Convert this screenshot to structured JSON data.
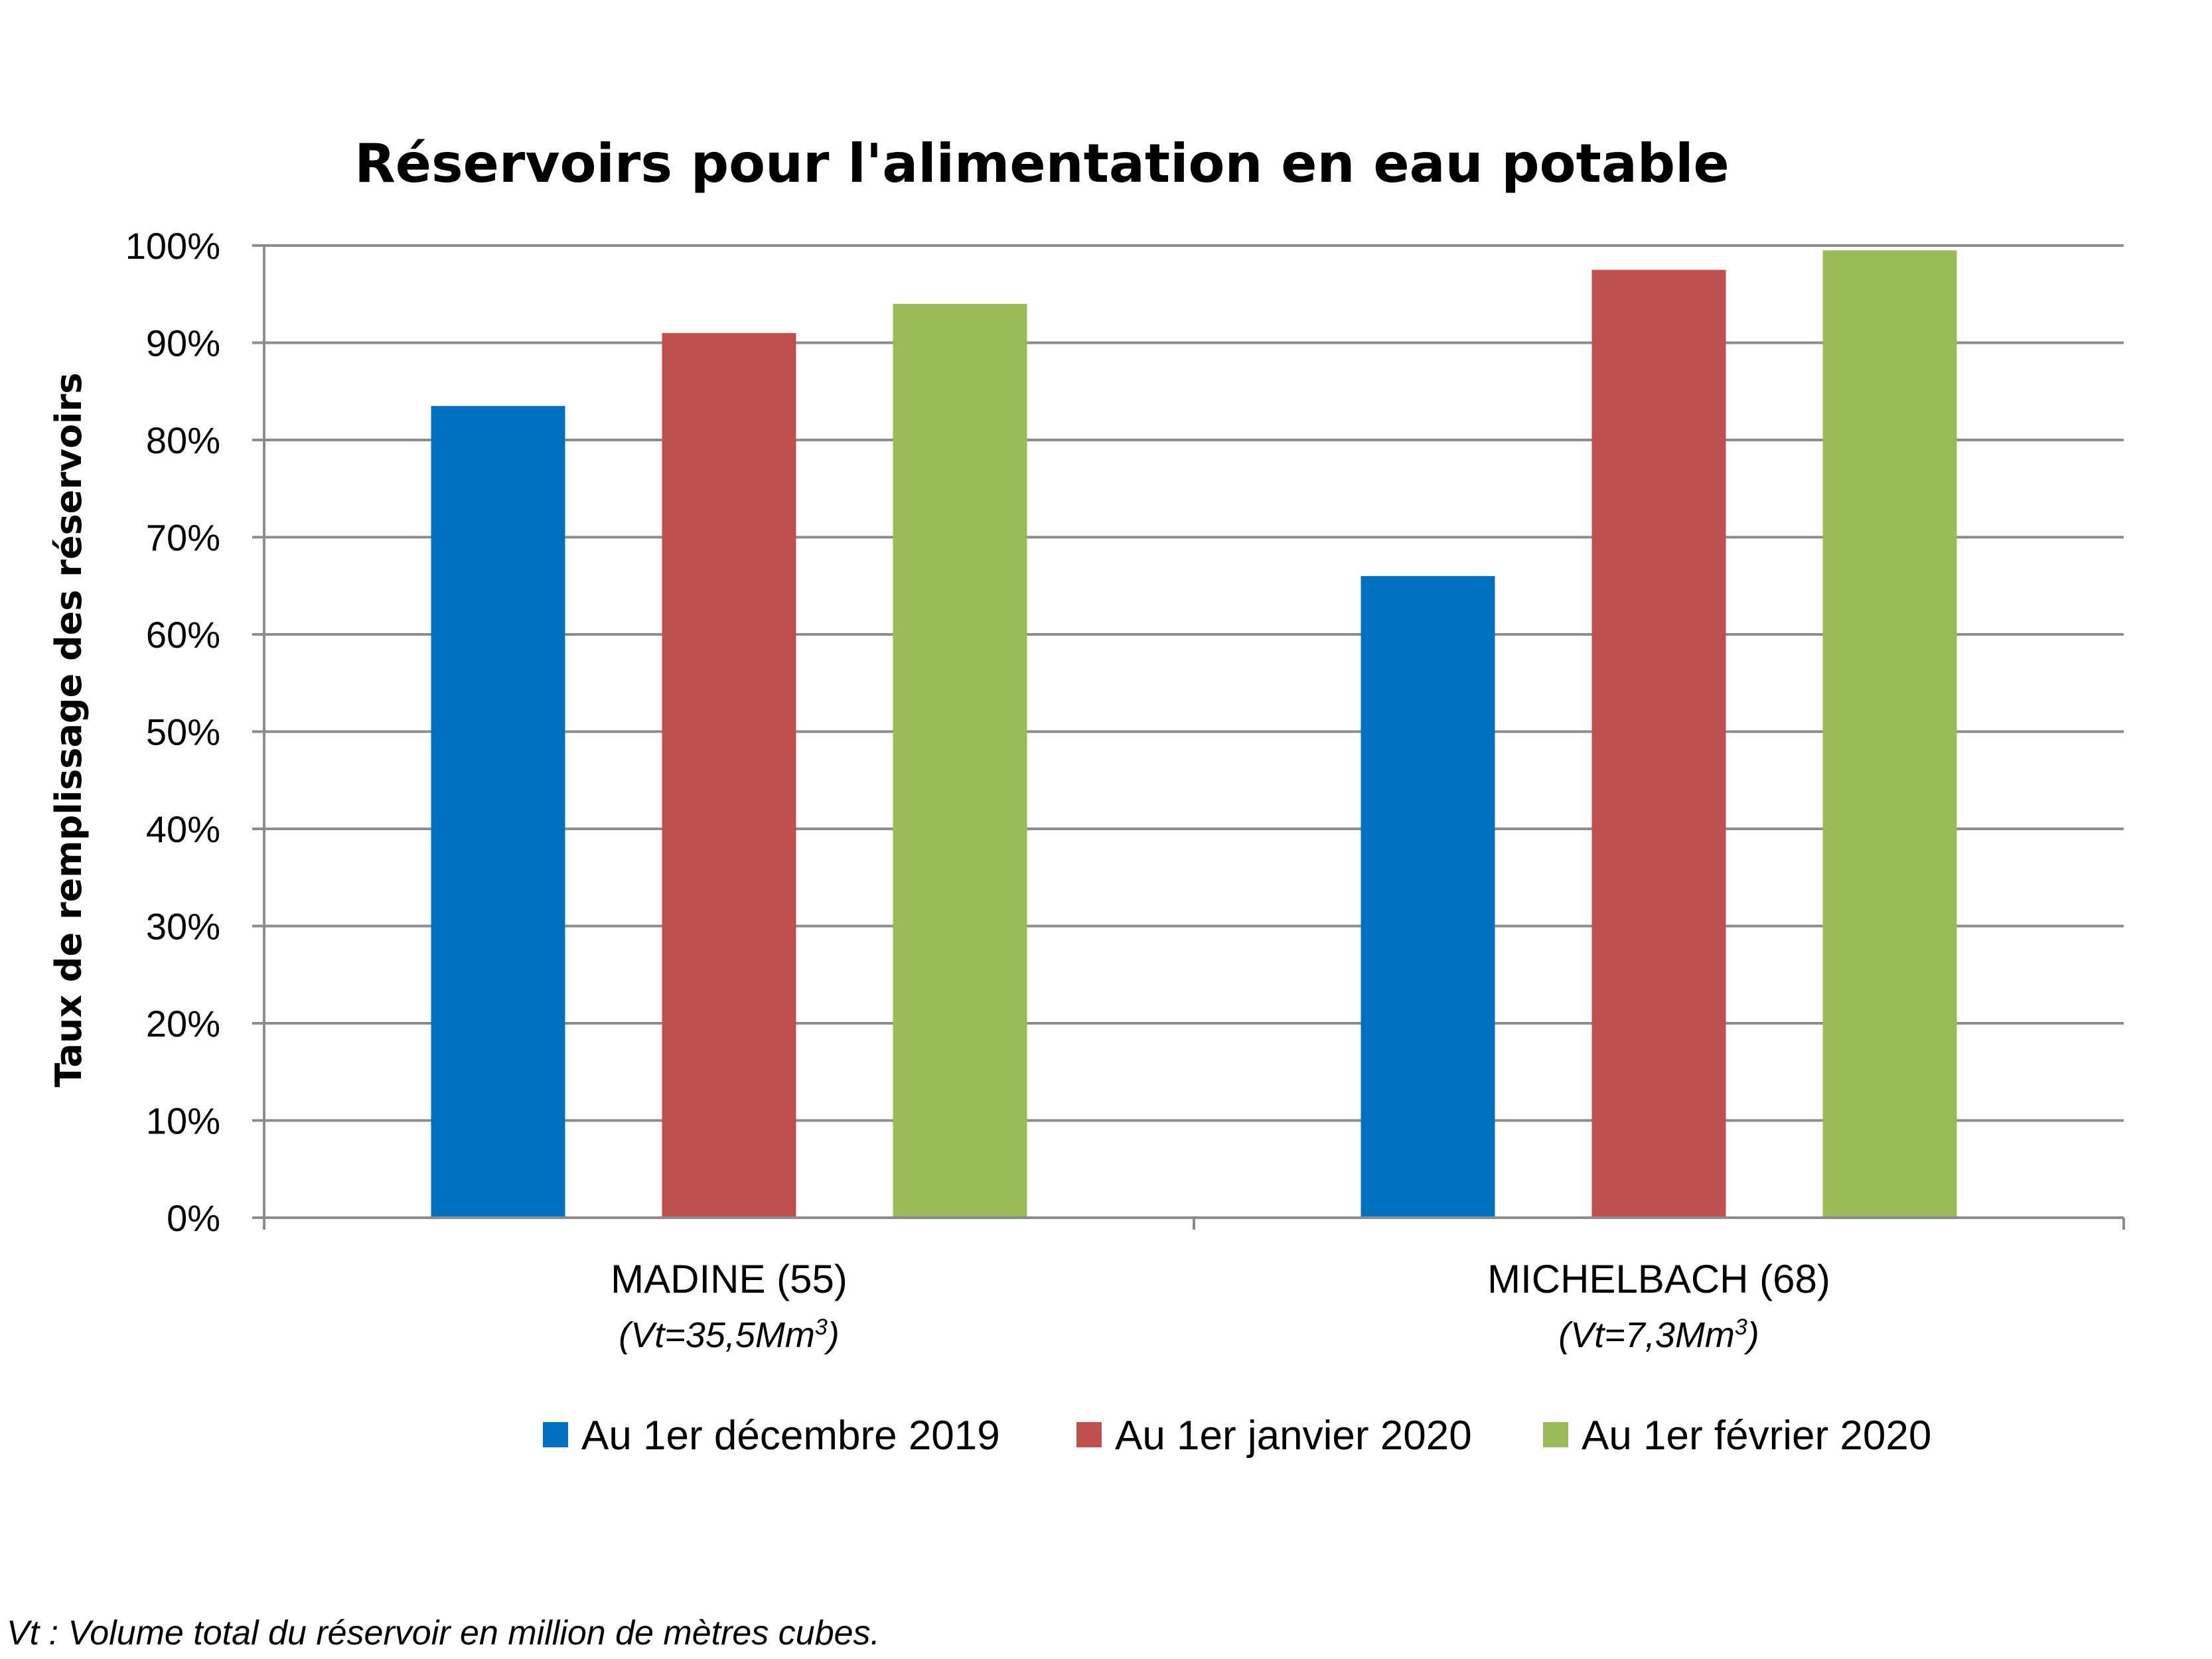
{
  "chart_data": {
    "type": "bar",
    "title": "Réservoirs pour l'alimentation en eau potable",
    "ylabel": "Taux de remplissage des réservoirs",
    "xlabel": "",
    "ylim": [
      0,
      100
    ],
    "yticks": [
      "0%",
      "10%",
      "20%",
      "30%",
      "40%",
      "50%",
      "60%",
      "70%",
      "80%",
      "90%",
      "100%"
    ],
    "categories": [
      "MADINE (55)",
      "MICHELBACH (68)"
    ],
    "category_sublabels": [
      {
        "base": "(Vt=35,5Mm",
        "sup": "3",
        "end": ")"
      },
      {
        "base": "(Vt=7,3Mm",
        "sup": "3",
        "end": ")"
      }
    ],
    "series": [
      {
        "name": "Au 1er décembre 2019",
        "color": "#0070C0",
        "values": [
          83.5,
          66
        ]
      },
      {
        "name": "Au 1er janvier 2020",
        "color": "#C0504D",
        "values": [
          91,
          97.5
        ]
      },
      {
        "name": "Au 1er février 2020",
        "color": "#9BBB59",
        "values": [
          94,
          99.5
        ]
      }
    ],
    "grid": true,
    "legend_position": "bottom"
  },
  "footnote": "Vt : Volume total du réservoir en million de mètres cubes."
}
